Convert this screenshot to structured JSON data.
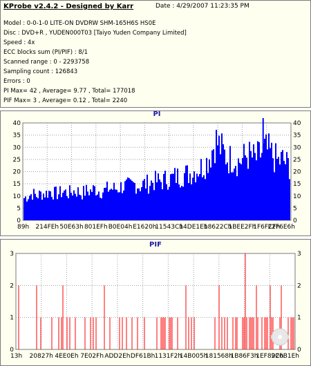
{
  "header": {
    "title": "KProbe v2.4.2 - Designed by Karr",
    "date": "Date : 4/29/2007 11:23:35 PM",
    "lines": [
      "Model : 0-0-1-0 LITE-ON DVDRW SHM-165H6S HS0E",
      "Disc : DVD+R , YUDEN000T03 [Taiyo Yuden Company Limited]",
      "Speed : 4x",
      "ECC blocks sum (PI/PIF) : 8/1",
      "Scanned range : 0 - 2293758",
      "Sampling count : 126843",
      "Errors : 0",
      "PI Max= 42 , Average= 9.77 , Total= 177018",
      "PIF Max= 3 , Average= 0.12 , Total= 2240"
    ]
  },
  "colors": {
    "pi": "#0000ff",
    "pif": "#ff0000",
    "title": "#1a1aa6",
    "grid": "#9b9b9b"
  },
  "chart_data": [
    {
      "type": "area",
      "title": "PI",
      "ylim": [
        0,
        40
      ],
      "yticks": [
        0,
        5,
        10,
        15,
        20,
        25,
        30,
        35,
        40
      ],
      "xticks": [
        "89h",
        "214FEh",
        "50E63h",
        "801EFh",
        "B0E04h",
        "E1620h",
        "11543Ch",
        "14DE1Eh",
        "18622Ch",
        "1BEE2Fh",
        "1F6FCFh",
        "22F6E6h"
      ],
      "grid": "dotted",
      "series": [
        {
          "values": [
            9,
            10,
            11,
            10,
            11,
            11,
            12,
            11,
            11,
            12,
            11,
            12,
            12,
            11,
            12,
            12,
            13,
            12,
            12,
            13,
            13,
            13,
            14,
            14,
            14,
            15,
            14,
            15,
            15,
            16,
            16,
            16,
            17,
            17,
            18,
            18,
            19,
            19,
            20,
            21,
            22,
            24,
            28,
            33,
            30,
            27,
            25,
            26,
            24,
            25,
            27,
            26,
            25,
            27,
            29,
            28,
            26,
            24,
            25,
            23,
            22
          ]
        }
      ],
      "spikes": [
        {
          "x": "1F6FCFh",
          "value": 42
        }
      ]
    },
    {
      "type": "bar",
      "title": "PIF",
      "ylim": [
        0,
        3
      ],
      "yticks": [
        0,
        1,
        2,
        3
      ],
      "xticks": [
        "13h",
        "20827h",
        "4EE0Eh",
        "7E02Fh",
        "ADD2Eh",
        "DF61Bh",
        "1131F2h",
        "14B005h",
        "181568h",
        "1B86F3h",
        "1EF89Ch",
        "226B1Eh"
      ],
      "grid": "dotted"
    }
  ]
}
